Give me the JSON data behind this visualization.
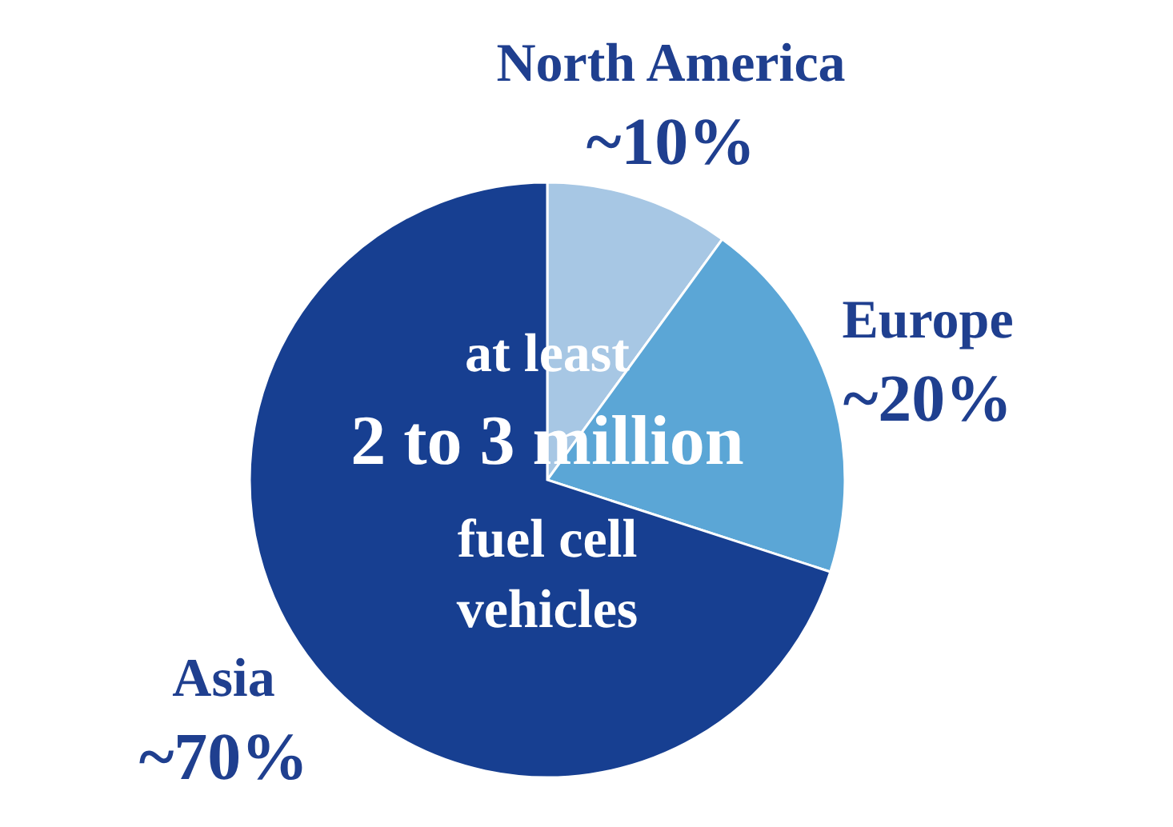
{
  "chart_data": {
    "type": "pie",
    "categories": [
      "North America",
      "Europe",
      "Asia"
    ],
    "values": [
      10,
      20,
      70
    ],
    "colors": [
      "#a7c7e4",
      "#5ba6d6",
      "#173f91"
    ],
    "value_labels": [
      "~10%",
      "~20%",
      "~70%"
    ],
    "annotations": [
      "at least",
      "2 to 3 million",
      "fuel cell",
      "vehicles"
    ]
  }
}
